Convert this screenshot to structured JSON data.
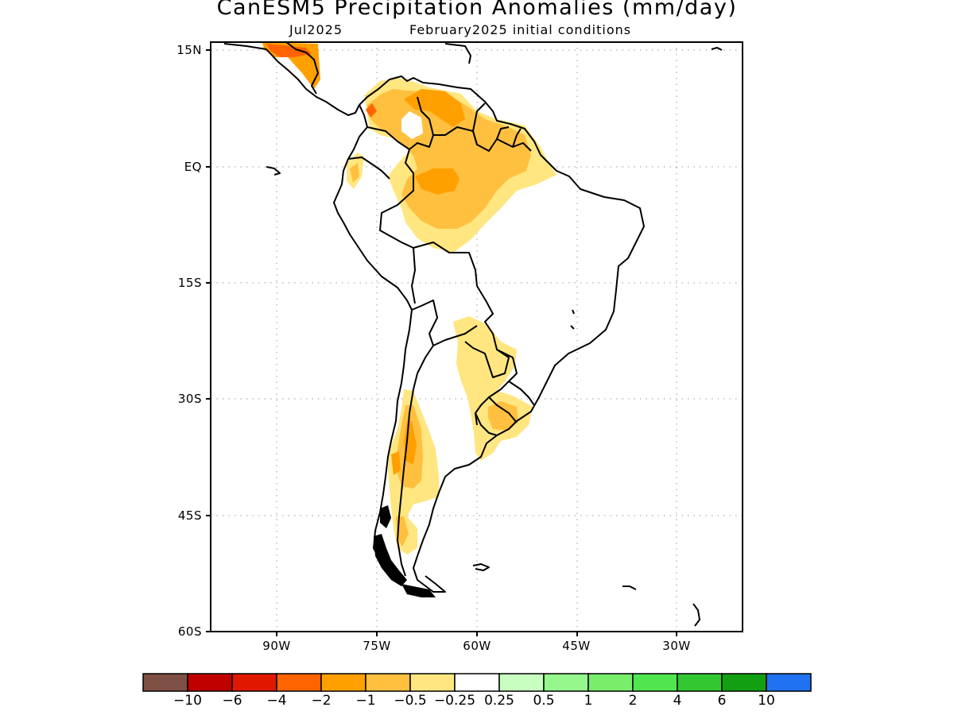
{
  "title": "CanESM5 Precipitation Anomalies (mm/day)",
  "subtitle_left": "Jul2025",
  "subtitle_right": "February2025 initial conditions",
  "lat_labels": [
    "15N",
    "EQ",
    "15S",
    "30S",
    "45S",
    "60S"
  ],
  "lon_labels": [
    "90W",
    "75W",
    "60W",
    "45W",
    "30W"
  ],
  "colorbar": {
    "colors": [
      "#7f5045",
      "#c00000",
      "#e01800",
      "#ff6400",
      "#ffa000",
      "#ffc040",
      "#ffe680",
      "#ffffff",
      "#c8ffc0",
      "#96f78c",
      "#78ee6a",
      "#50e650",
      "#32c832",
      "#12a012",
      "#2072f0"
    ],
    "labels": [
      "−10",
      "−6",
      "−4",
      "−2",
      "−1",
      "−0.5",
      "−0.25",
      "0.25",
      "0.5",
      "1",
      "2",
      "4",
      "6",
      "10"
    ]
  }
}
